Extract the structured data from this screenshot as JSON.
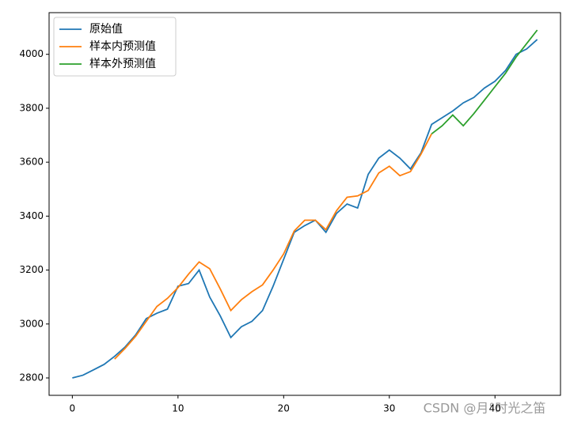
{
  "chart_data": {
    "type": "line",
    "x": [
      0,
      1,
      2,
      3,
      4,
      5,
      6,
      7,
      8,
      9,
      10,
      11,
      12,
      13,
      14,
      15,
      16,
      17,
      18,
      19,
      20,
      21,
      22,
      23,
      24,
      25,
      26,
      27,
      28,
      29,
      30,
      31,
      32,
      33,
      34,
      35,
      36,
      37,
      38,
      39,
      40,
      41,
      42,
      43,
      44
    ],
    "series": [
      {
        "name": "原始值",
        "color": "#1f77b4",
        "values": [
          2800,
          2810,
          2830,
          2850,
          2880,
          2915,
          2960,
          3020,
          3040,
          3055,
          3140,
          3150,
          3200,
          3100,
          3030,
          2950,
          2990,
          3010,
          3050,
          3140,
          3240,
          3340,
          3365,
          3385,
          3340,
          3410,
          3445,
          3430,
          3555,
          3615,
          3645,
          3615,
          3575,
          3635,
          3740,
          3765,
          3790,
          3820,
          3840,
          3875,
          3900,
          3940,
          4000,
          4020,
          4055
        ]
      },
      {
        "name": "样本内预测值",
        "color": "#ff7f0e",
        "values": [
          null,
          null,
          null,
          null,
          2870,
          2910,
          2955,
          3010,
          3065,
          3095,
          3135,
          3185,
          3230,
          3205,
          3130,
          3050,
          3090,
          3120,
          3145,
          3200,
          3260,
          3345,
          3385,
          3385,
          3350,
          3420,
          3470,
          3475,
          3495,
          3560,
          3585,
          3550,
          3565,
          3630,
          3705,
          null,
          null,
          null,
          null,
          null,
          null,
          null,
          null,
          null,
          null
        ]
      },
      {
        "name": "样本外预测值",
        "color": "#2ca02c",
        "values": [
          null,
          null,
          null,
          null,
          null,
          null,
          null,
          null,
          null,
          null,
          null,
          null,
          null,
          null,
          null,
          null,
          null,
          null,
          null,
          null,
          null,
          null,
          null,
          null,
          null,
          null,
          null,
          null,
          null,
          null,
          null,
          null,
          null,
          null,
          3705,
          3735,
          3775,
          3735,
          3780,
          3830,
          3880,
          3930,
          3990,
          4040,
          4090
        ]
      }
    ],
    "xlim": [
      -2.2,
      46.2
    ],
    "xticks": [
      0,
      10,
      20,
      30,
      40
    ],
    "ylim": [
      2735.5,
      4154.5
    ],
    "yticks": [
      2800,
      3000,
      3200,
      3400,
      3600,
      3800,
      4000
    ],
    "grid": false,
    "legend": "upper-left"
  },
  "watermark": "CSDN @月°时光之笛"
}
